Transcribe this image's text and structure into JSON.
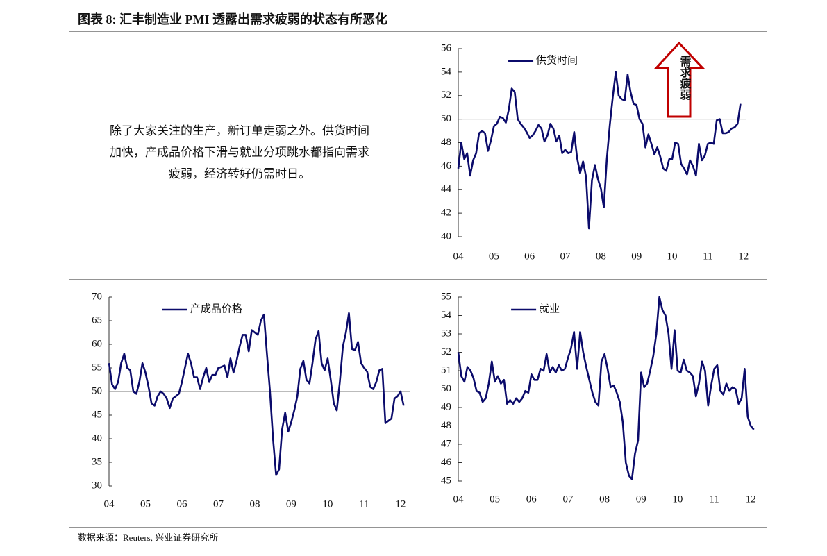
{
  "title": "图表 8:  汇丰制造业 PMI 透露出需求疲弱的状态有所恶化",
  "body_lines": [
    "除了大家关注的生产，新订单走弱之外。供货时间",
    "加快，产成品价格下滑与就业分项跳水都指向需求",
    "疲弱，经济转好仍需时日。"
  ],
  "source": "数据来源：Reuters, 兴业证券研究所",
  "chart_data": [
    {
      "type": "line",
      "annotation": "需求疲弱",
      "hline": 50,
      "legend": "upper left",
      "x": [
        0,
        1,
        2,
        3,
        4,
        5,
        6,
        7,
        8,
        9,
        10,
        11,
        12,
        13,
        14,
        15,
        16,
        17,
        18,
        19,
        20,
        21,
        22,
        23,
        24,
        25,
        26,
        27,
        28,
        29,
        30,
        31,
        32,
        33,
        34,
        35,
        36,
        37,
        38,
        39,
        40,
        41,
        42,
        43,
        44,
        45,
        46,
        47,
        48,
        49,
        50,
        51,
        52,
        53,
        54,
        55,
        56,
        57,
        58,
        59,
        60,
        61,
        62,
        63,
        64,
        65,
        66,
        67,
        68,
        69,
        70,
        71,
        72,
        73,
        74,
        75,
        76,
        77,
        78,
        79,
        80,
        81,
        82,
        83,
        84,
        85,
        86,
        87,
        88,
        89,
        90,
        91,
        92,
        93,
        94,
        95
      ],
      "series": [
        {
          "name": "供货时间",
          "color": "#0b0b6b",
          "values": [
            45.8,
            48,
            46.6,
            47.1,
            45.2,
            46.5,
            47.1,
            48.8,
            49,
            48.8,
            47.3,
            48.2,
            49.4,
            49.6,
            50.2,
            50.1,
            49.7,
            50.8,
            52.6,
            52.3,
            50,
            49.6,
            49.3,
            48.9,
            48.4,
            48.6,
            49,
            49.5,
            49.2,
            48.1,
            48.6,
            49.6,
            49.2,
            48.1,
            48.6,
            47.1,
            47.4,
            47.1,
            47.2,
            48.9,
            46.7,
            45.4,
            46.4,
            45.1,
            40.7,
            44.8,
            46.1,
            44.9,
            44.1,
            42.5,
            46.6,
            49.5,
            51.9,
            54,
            52,
            51.7,
            51.6,
            53.8,
            52.3,
            51.3,
            51.2,
            50,
            49.6,
            47.6,
            48.7,
            47.9,
            47,
            47.6,
            46.8,
            45.8,
            45.6,
            46.6,
            46.6,
            48,
            47.9,
            46.2,
            45.8,
            45.3,
            46.5,
            46,
            45.2,
            47.9,
            46.5,
            46.9,
            47.9,
            48,
            47.9,
            49.9,
            50,
            48.8,
            48.8,
            48.9,
            49.2,
            49.3,
            49.6,
            51.3
          ]
        }
      ],
      "xlim": [
        0,
        97
      ],
      "xticks": [
        {
          "value": 0,
          "label": "04"
        },
        {
          "value": 12,
          "label": "05"
        },
        {
          "value": 24,
          "label": "06"
        },
        {
          "value": 36,
          "label": "07"
        },
        {
          "value": 48,
          "label": "08"
        },
        {
          "value": 60,
          "label": "09"
        },
        {
          "value": 72,
          "label": "10"
        },
        {
          "value": 84,
          "label": "11"
        },
        {
          "value": 96,
          "label": "12"
        }
      ],
      "ylim": [
        40,
        56
      ],
      "yticks": [
        40,
        42,
        44,
        46,
        48,
        50,
        52,
        54,
        56
      ]
    },
    {
      "type": "line",
      "hline": 50,
      "legend": "upper left",
      "x": [
        0,
        1,
        2,
        3,
        4,
        5,
        6,
        7,
        8,
        9,
        10,
        11,
        12,
        13,
        14,
        15,
        16,
        17,
        18,
        19,
        20,
        21,
        22,
        23,
        24,
        25,
        26,
        27,
        28,
        29,
        30,
        31,
        32,
        33,
        34,
        35,
        36,
        37,
        38,
        39,
        40,
        41,
        42,
        43,
        44,
        45,
        46,
        47,
        48,
        49,
        50,
        51,
        52,
        53,
        54,
        55,
        56,
        57,
        58,
        59,
        60,
        61,
        62,
        63,
        64,
        65,
        66,
        67,
        68,
        69,
        70,
        71,
        72,
        73,
        74,
        75,
        76,
        77,
        78,
        79,
        80,
        81,
        82,
        83,
        84,
        85,
        86,
        87,
        88,
        89,
        90,
        91,
        92,
        93,
        94,
        95,
        96,
        97
      ],
      "series": [
        {
          "name": "产成品价格",
          "color": "#0b0b6b",
          "values": [
            56,
            51.5,
            50.5,
            52,
            56,
            58,
            55,
            54.5,
            50,
            49.5,
            52,
            56,
            54,
            51,
            47.5,
            47,
            49,
            50,
            49.5,
            48.5,
            46.5,
            48.5,
            49,
            49.5,
            52,
            55,
            58,
            56,
            53,
            53,
            50.5,
            53,
            55,
            52,
            53.5,
            53.5,
            55,
            55.2,
            55.5,
            53,
            57,
            54,
            56.5,
            59.5,
            62,
            62,
            58.5,
            63,
            62.5,
            62,
            65,
            66.3,
            58,
            50,
            40,
            32.3,
            33.5,
            42,
            45.5,
            41.5,
            43.5,
            46,
            49,
            54.8,
            56.5,
            52.5,
            51.7,
            56,
            61,
            62.8,
            56,
            54.5,
            57,
            52.5,
            47.5,
            46,
            52,
            59.5,
            62.5,
            66.6,
            59,
            58.8,
            60.5,
            56,
            55,
            54.2,
            51,
            50.5,
            52,
            54.5,
            54.8,
            43.3,
            43.8,
            44.3,
            48.5,
            49,
            50,
            47
          ]
        }
      ],
      "xlim": [
        0,
        99
      ],
      "xticks": [
        {
          "value": 0,
          "label": "04"
        },
        {
          "value": 12,
          "label": "05"
        },
        {
          "value": 24,
          "label": "06"
        },
        {
          "value": 36,
          "label": "07"
        },
        {
          "value": 48,
          "label": "08"
        },
        {
          "value": 60,
          "label": "09"
        },
        {
          "value": 72,
          "label": "10"
        },
        {
          "value": 84,
          "label": "11"
        },
        {
          "value": 96,
          "label": "12"
        }
      ],
      "ylim": [
        30,
        70
      ],
      "yticks": [
        30,
        35,
        40,
        45,
        50,
        55,
        60,
        65,
        70
      ]
    },
    {
      "type": "line",
      "hline": 50,
      "legend": "upper left",
      "x": [
        0,
        1,
        2,
        3,
        4,
        5,
        6,
        7,
        8,
        9,
        10,
        11,
        12,
        13,
        14,
        15,
        16,
        17,
        18,
        19,
        20,
        21,
        22,
        23,
        24,
        25,
        26,
        27,
        28,
        29,
        30,
        31,
        32,
        33,
        34,
        35,
        36,
        37,
        38,
        39,
        40,
        41,
        42,
        43,
        44,
        45,
        46,
        47,
        48,
        49,
        50,
        51,
        52,
        53,
        54,
        55,
        56,
        57,
        58,
        59,
        60,
        61,
        62,
        63,
        64,
        65,
        66,
        67,
        68,
        69,
        70,
        71,
        72,
        73,
        74,
        75,
        76,
        77,
        78,
        79,
        80,
        81,
        82,
        83,
        84,
        85,
        86,
        87,
        88,
        89,
        90,
        91,
        92,
        93,
        94,
        95,
        96,
        97
      ],
      "series": [
        {
          "name": "就业",
          "color": "#0b0b6b",
          "values": [
            52,
            50.7,
            50.4,
            51.2,
            51,
            50.6,
            49.9,
            49.8,
            49.3,
            49.5,
            50.3,
            51.5,
            50.4,
            50.7,
            50.3,
            50.5,
            49.2,
            49.4,
            49.2,
            49.5,
            49.3,
            49.5,
            49.9,
            49.8,
            50.8,
            50.5,
            50.5,
            51.1,
            51,
            51.9,
            50.9,
            51.2,
            50.9,
            51.3,
            51,
            51.1,
            51.7,
            52.2,
            53.1,
            51.1,
            53.1,
            52,
            51.2,
            50.5,
            49.8,
            49.3,
            49.1,
            51.5,
            51.9,
            51.1,
            50.1,
            50.2,
            49.8,
            49.3,
            48.2,
            46,
            45.3,
            45.1,
            46.5,
            47.2,
            50.9,
            50.1,
            50.3,
            51,
            51.8,
            53,
            55,
            54.3,
            54,
            53,
            51.1,
            53.2,
            51,
            50.9,
            51.6,
            51,
            50.9,
            50.7,
            49.6,
            50.3,
            51.5,
            51,
            49.1,
            50.2,
            51.1,
            51.3,
            49.9,
            49.7,
            50.3,
            49.9,
            50.1,
            50,
            49.2,
            49.5,
            51.1,
            48.5,
            48,
            47.8
          ]
        }
      ],
      "xlim": [
        0,
        98
      ],
      "xticks": [
        {
          "value": 0,
          "label": "04"
        },
        {
          "value": 12,
          "label": "05"
        },
        {
          "value": 24,
          "label": "06"
        },
        {
          "value": 36,
          "label": "07"
        },
        {
          "value": 48,
          "label": "08"
        },
        {
          "value": 60,
          "label": "09"
        },
        {
          "value": 72,
          "label": "10"
        },
        {
          "value": 84,
          "label": "11"
        },
        {
          "value": 96,
          "label": "12"
        }
      ],
      "ylim": [
        45,
        55
      ],
      "yticks": [
        45,
        46,
        47,
        48,
        49,
        50,
        51,
        52,
        53,
        54,
        55
      ]
    }
  ]
}
